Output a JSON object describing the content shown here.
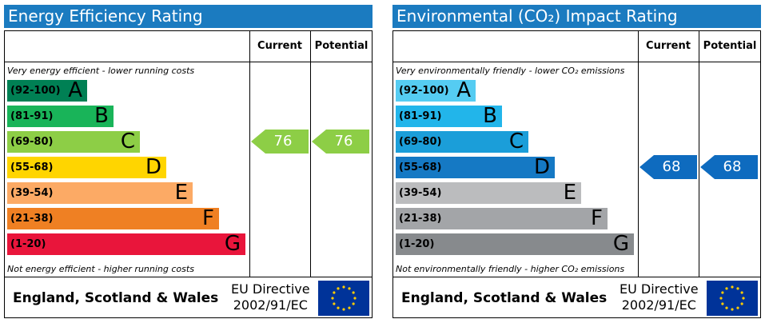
{
  "chart_data": [
    {
      "type": "bar",
      "title": "Energy Efficiency Rating",
      "columns": {
        "current": "Current",
        "potential": "Potential"
      },
      "top_note": "Very energy efficient - lower running costs",
      "bottom_note": "Not energy efficient - higher running costs",
      "bands": [
        {
          "range": "(92-100)",
          "letter": "A",
          "color": "#008054"
        },
        {
          "range": "(81-91)",
          "letter": "B",
          "color": "#19b459"
        },
        {
          "range": "(69-80)",
          "letter": "C",
          "color": "#8dce46"
        },
        {
          "range": "(55-68)",
          "letter": "D",
          "color": "#ffd500"
        },
        {
          "range": "(39-54)",
          "letter": "E",
          "color": "#fcaa65"
        },
        {
          "range": "(21-38)",
          "letter": "F",
          "color": "#ef8023"
        },
        {
          "range": "(1-20)",
          "letter": "G",
          "color": "#e9153b"
        }
      ],
      "current": {
        "value": 76,
        "label": "76",
        "color": "#8dce46"
      },
      "potential": {
        "value": 76,
        "label": "76",
        "color": "#8dce46"
      },
      "footer": {
        "region": "England, Scotland & Wales",
        "directive_line1": "EU Directive",
        "directive_line2": "2002/91/EC"
      }
    },
    {
      "type": "bar",
      "title": "Environmental (CO₂) Impact Rating",
      "columns": {
        "current": "Current",
        "potential": "Potential"
      },
      "top_note": "Very environmentally friendly - lower CO₂ emissions",
      "bottom_note": "Not environmentally friendly - higher CO₂ emissions",
      "bands": [
        {
          "range": "(92-100)",
          "letter": "A",
          "color": "#55ccf2"
        },
        {
          "range": "(81-91)",
          "letter": "B",
          "color": "#22b5ea"
        },
        {
          "range": "(69-80)",
          "letter": "C",
          "color": "#1b9ed9"
        },
        {
          "range": "(55-68)",
          "letter": "D",
          "color": "#1579c4"
        },
        {
          "range": "(39-54)",
          "letter": "E",
          "color": "#bbbcbe"
        },
        {
          "range": "(21-38)",
          "letter": "F",
          "color": "#a3a5a8"
        },
        {
          "range": "(1-20)",
          "letter": "G",
          "color": "#878a8d"
        }
      ],
      "current": {
        "value": 68,
        "label": "68",
        "color": "#0e6bbf"
      },
      "potential": {
        "value": 68,
        "label": "68",
        "color": "#0e6bbf"
      },
      "footer": {
        "region": "England, Scotland & Wales",
        "directive_line1": "EU Directive",
        "directive_line2": "2002/91/EC"
      }
    }
  ]
}
